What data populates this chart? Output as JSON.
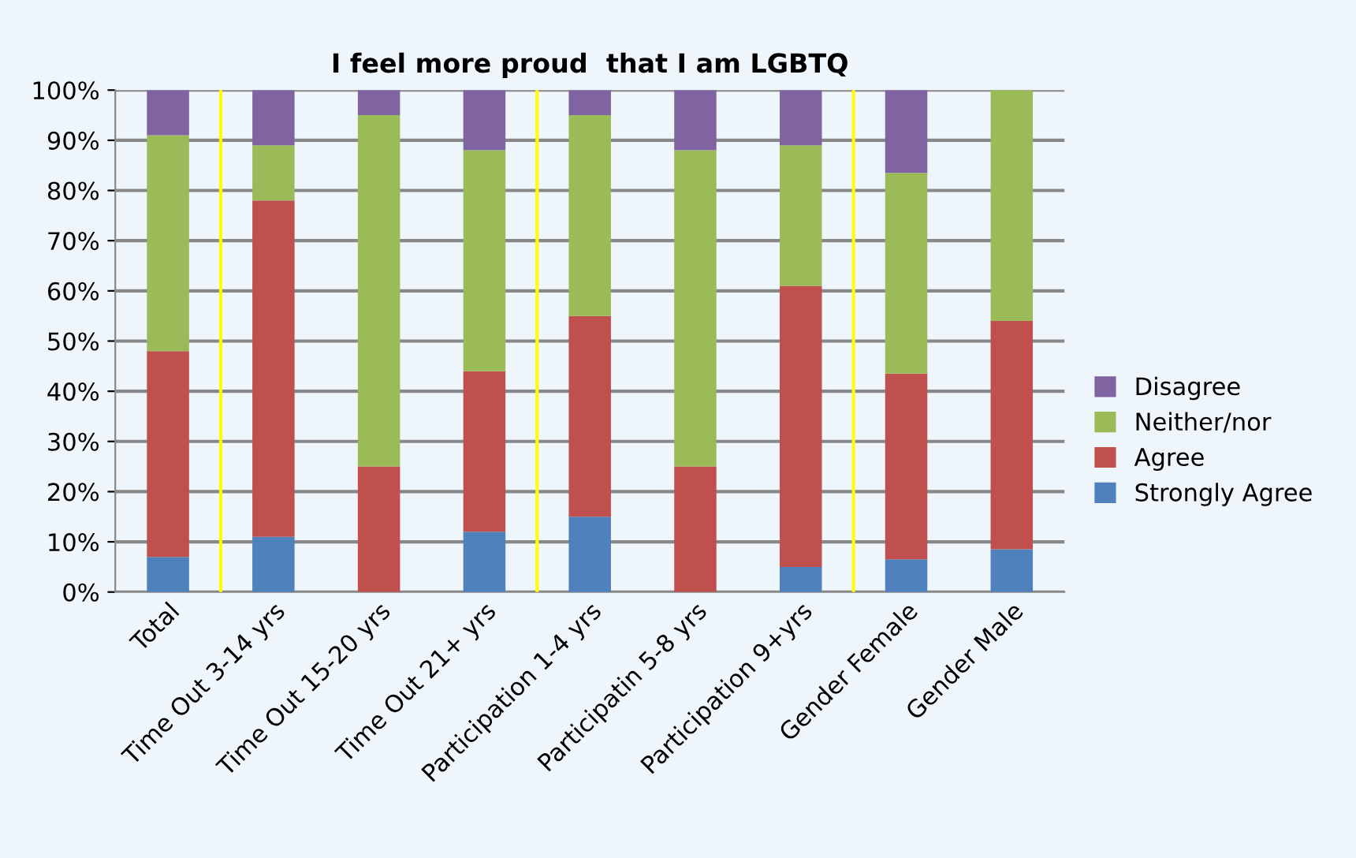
{
  "chart_data": {
    "type": "bar",
    "title": "I feel more proud  that I am LGBTQ",
    "categories": [
      "Total",
      "Time Out 3-14 yrs",
      "Time Out 15-20 yrs",
      "Time Out 21+ yrs",
      "Participation 1-4 yrs",
      "Participatin 5-8 yrs",
      "Participation 9+yrs",
      "Gender Female",
      "Gender Male"
    ],
    "stacked": true,
    "series": [
      {
        "name": "Strongly Agree",
        "color": "#4f81bd",
        "values": [
          7,
          11,
          0,
          12,
          15,
          0,
          5,
          6.5,
          8.5
        ]
      },
      {
        "name": "Agree",
        "color": "#c0504d",
        "values": [
          41,
          67,
          25,
          32,
          40,
          25,
          56,
          37,
          45.5
        ]
      },
      {
        "name": "Neither/nor",
        "color": "#9bbb59",
        "values": [
          43,
          11,
          70,
          44,
          40,
          63,
          28,
          40,
          46
        ]
      },
      {
        "name": "Disagree",
        "color": "#8064a2",
        "values": [
          9,
          11,
          5,
          12,
          5,
          12,
          11,
          16.5,
          0
        ]
      }
    ],
    "ylim": [
      0,
      100
    ],
    "yticks": [
      {
        "value": 0,
        "label": "0%"
      },
      {
        "value": 10,
        "label": "10%"
      },
      {
        "value": 20,
        "label": "20%"
      },
      {
        "value": 30,
        "label": "30%"
      },
      {
        "value": 40,
        "label": "40%"
      },
      {
        "value": 50,
        "label": "50%"
      },
      {
        "value": 60,
        "label": "60%"
      },
      {
        "value": 70,
        "label": "70%"
      },
      {
        "value": 80,
        "label": "80%"
      },
      {
        "value": 90,
        "label": "90%"
      },
      {
        "value": 100,
        "label": "100%"
      }
    ],
    "grid": "y",
    "legend": "right"
  }
}
